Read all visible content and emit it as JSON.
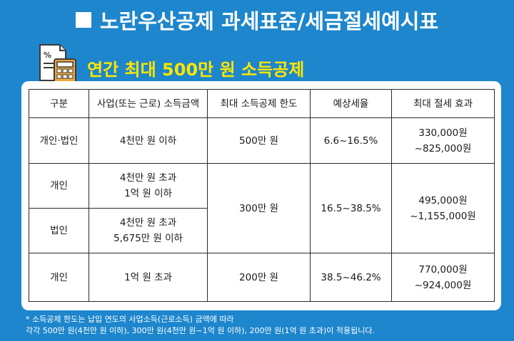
{
  "title": "노란우산공제 과세표준/세금절세예시표",
  "subtitle": "연간 최대 500만 원 소득공제",
  "icon": "calculator-document-icon",
  "colors": {
    "background": "#1d86cc",
    "subtitle": "#ffe600",
    "panel": "#ffffff"
  },
  "table": {
    "headers": [
      "구분",
      "사업(또는 근로) 소득금액",
      "최대 소득공제 한도",
      "예상세율",
      "최대 절세 효과"
    ],
    "rows": [
      {
        "type": "개인·법인",
        "income": [
          "4천만 원 이하"
        ],
        "limit": "500만 원",
        "rate": "6.6~16.5%",
        "effect": [
          "330,000원",
          "~825,000원"
        ]
      },
      {
        "type": "개인",
        "income": [
          "4천만 원 초과",
          "1억 원 이하"
        ],
        "limit": "300만 원",
        "rate": "16.5~38.5%",
        "effect": [
          "495,000원",
          "~1,155,000원"
        ]
      },
      {
        "type": "법인",
        "income": [
          "4천만 원 초과",
          "5,675만 원 이하"
        ]
      },
      {
        "type": "개인",
        "income": [
          "1억 원 초과"
        ],
        "limit": "200만 원",
        "rate": "38.5~46.2%",
        "effect": [
          "770,000원",
          "~924,000원"
        ]
      }
    ]
  },
  "note": {
    "line1": "* 소득공제 한도는 납입 연도의 사업소득(근로소득) 금액에 따라",
    "line2": "각각 500만 원(4천만 원 이하), 300만 원(4천만 원~1억 원 이하), 200만 원(1억 원 초과)이 적용됩니다."
  }
}
